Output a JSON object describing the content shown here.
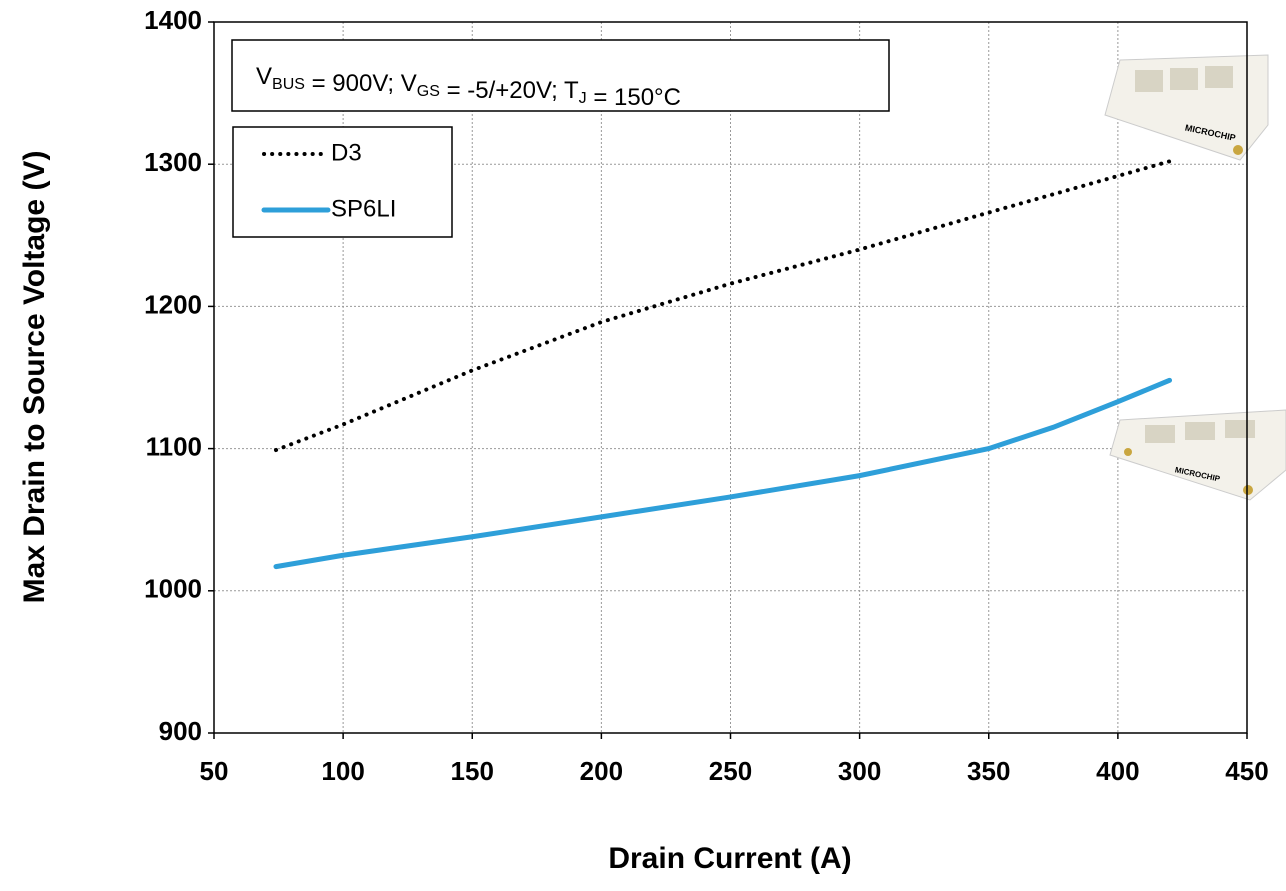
{
  "chart_data": {
    "type": "line",
    "xlabel": "Drain Current (A)",
    "ylabel": "Max Drain to Source Voltage (V)",
    "annotation": [
      {
        "text": "V",
        "sub": "BUS"
      },
      {
        "text": " = 900V; V",
        "sub": "GS"
      },
      {
        "text": " = -5/+20V; T",
        "sub": "J"
      },
      {
        "text": " = 150°C"
      }
    ],
    "image_labels": [
      "MICROCHIP",
      "MICROCHIP"
    ],
    "series": [
      {
        "name": "D3",
        "color": "#000000",
        "style": "dotted",
        "x": [
          74,
          100,
          150,
          200,
          250,
          300,
          350,
          420
        ],
        "values": [
          1099,
          1117,
          1155,
          1189,
          1216,
          1240,
          1266,
          1302
        ]
      },
      {
        "name": "SP6LI",
        "color": "#2e9fd9",
        "style": "solid",
        "x": [
          74,
          100,
          150,
          200,
          250,
          300,
          350,
          375,
          400,
          420
        ],
        "values": [
          1017,
          1025,
          1038,
          1052,
          1066,
          1081,
          1100,
          1115,
          1133,
          1148
        ]
      }
    ],
    "xlim": [
      50,
      450
    ],
    "xticks": [
      50,
      100,
      150,
      200,
      250,
      300,
      350,
      400,
      450
    ],
    "ylim": [
      900,
      1400
    ],
    "yticks": [
      900,
      1000,
      1100,
      1200,
      1300,
      1400
    ],
    "grid": true,
    "legend": "upper left"
  }
}
